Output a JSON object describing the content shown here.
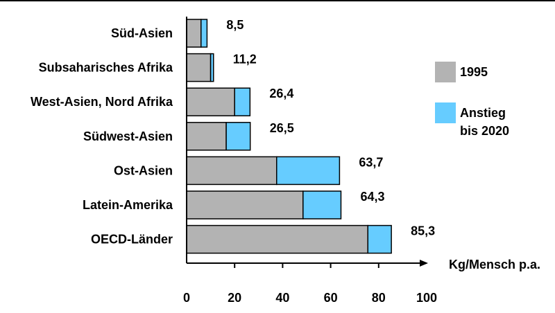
{
  "chart_data": {
    "type": "bar",
    "orientation": "horizontal",
    "stacked": true,
    "categories": [
      "Süd-Asien",
      "Subsaharisches Afrika",
      "West-Asien, Nord Afrika",
      "Südwest-Asien",
      "Ost-Asien",
      "Latein-Amerika",
      "OECD-Länder"
    ],
    "series": [
      {
        "name": "1995",
        "values": [
          6.0,
          10.0,
          20.0,
          16.5,
          37.5,
          48.5,
          75.5
        ],
        "color": "#b3b3b3"
      },
      {
        "name": "Anstieg bis 2020",
        "values": [
          2.5,
          1.2,
          6.4,
          10.0,
          26.2,
          15.8,
          9.8
        ],
        "color": "#66ccff"
      }
    ],
    "totals_labels": [
      "8,5",
      "11,2",
      "26,4",
      "26,5",
      "63,7",
      "64,3",
      "85,3"
    ],
    "xlabel": "Kg/Mensch p.a.",
    "xlim": [
      0,
      100
    ],
    "xticks": [
      0,
      20,
      40,
      60,
      80,
      100
    ],
    "legend": {
      "position": "right",
      "entries": [
        "1995",
        "Anstieg\nbis 2020"
      ]
    },
    "grid": false
  }
}
